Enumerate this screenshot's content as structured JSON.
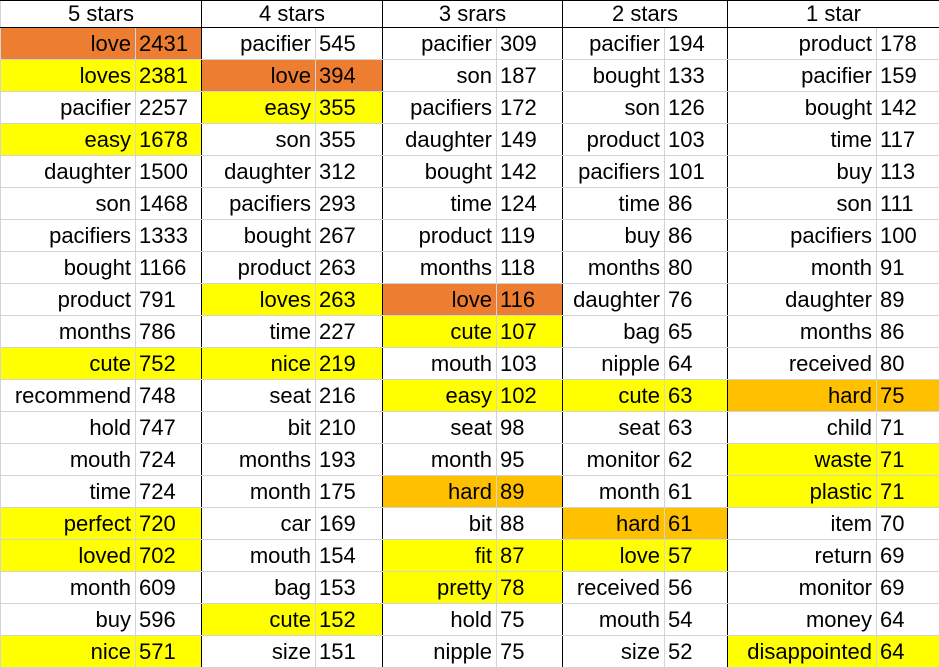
{
  "colors": {
    "yellow": "#ffff00",
    "light_orange": "#ffc000",
    "dark_orange": "#ed7d31"
  },
  "columns": [
    {
      "header": "5 stars",
      "rows": [
        {
          "word": "love",
          "count": "2431",
          "highlight": "dark_orange"
        },
        {
          "word": "loves",
          "count": "2381",
          "highlight": "yellow"
        },
        {
          "word": "pacifier",
          "count": "2257",
          "highlight": ""
        },
        {
          "word": "easy",
          "count": "1678",
          "highlight": "yellow"
        },
        {
          "word": "daughter",
          "count": "1500",
          "highlight": ""
        },
        {
          "word": "son",
          "count": "1468",
          "highlight": ""
        },
        {
          "word": "pacifiers",
          "count": "1333",
          "highlight": ""
        },
        {
          "word": "bought",
          "count": "1166",
          "highlight": ""
        },
        {
          "word": "product",
          "count": "791",
          "highlight": ""
        },
        {
          "word": "months",
          "count": "786",
          "highlight": ""
        },
        {
          "word": "cute",
          "count": "752",
          "highlight": "yellow"
        },
        {
          "word": "recommend",
          "count": "748",
          "highlight": ""
        },
        {
          "word": "hold",
          "count": "747",
          "highlight": ""
        },
        {
          "word": "mouth",
          "count": "724",
          "highlight": ""
        },
        {
          "word": "time",
          "count": "724",
          "highlight": ""
        },
        {
          "word": "perfect",
          "count": "720",
          "highlight": "yellow"
        },
        {
          "word": "loved",
          "count": "702",
          "highlight": "yellow"
        },
        {
          "word": "month",
          "count": "609",
          "highlight": ""
        },
        {
          "word": "buy",
          "count": "596",
          "highlight": ""
        },
        {
          "word": "nice",
          "count": "571",
          "highlight": "yellow"
        }
      ]
    },
    {
      "header": "4 stars",
      "rows": [
        {
          "word": "pacifier",
          "count": "545",
          "highlight": ""
        },
        {
          "word": "love",
          "count": "394",
          "highlight": "dark_orange"
        },
        {
          "word": "easy",
          "count": "355",
          "highlight": "yellow"
        },
        {
          "word": "son",
          "count": "355",
          "highlight": ""
        },
        {
          "word": "daughter",
          "count": "312",
          "highlight": ""
        },
        {
          "word": "pacifiers",
          "count": "293",
          "highlight": ""
        },
        {
          "word": "bought",
          "count": "267",
          "highlight": ""
        },
        {
          "word": "product",
          "count": "263",
          "highlight": ""
        },
        {
          "word": "loves",
          "count": "263",
          "highlight": "yellow"
        },
        {
          "word": "time",
          "count": "227",
          "highlight": ""
        },
        {
          "word": "nice",
          "count": "219",
          "highlight": "yellow"
        },
        {
          "word": "seat",
          "count": "216",
          "highlight": ""
        },
        {
          "word": "bit",
          "count": "210",
          "highlight": ""
        },
        {
          "word": "months",
          "count": "193",
          "highlight": ""
        },
        {
          "word": "month",
          "count": "175",
          "highlight": ""
        },
        {
          "word": "car",
          "count": "169",
          "highlight": ""
        },
        {
          "word": "mouth",
          "count": "154",
          "highlight": ""
        },
        {
          "word": "bag",
          "count": "153",
          "highlight": ""
        },
        {
          "word": "cute",
          "count": "152",
          "highlight": "yellow"
        },
        {
          "word": "size",
          "count": "151",
          "highlight": ""
        }
      ]
    },
    {
      "header": "3 srars",
      "rows": [
        {
          "word": "pacifier",
          "count": "309",
          "highlight": ""
        },
        {
          "word": "son",
          "count": "187",
          "highlight": ""
        },
        {
          "word": "pacifiers",
          "count": "172",
          "highlight": ""
        },
        {
          "word": "daughter",
          "count": "149",
          "highlight": ""
        },
        {
          "word": "bought",
          "count": "142",
          "highlight": ""
        },
        {
          "word": "time",
          "count": "124",
          "highlight": ""
        },
        {
          "word": "product",
          "count": "119",
          "highlight": ""
        },
        {
          "word": "months",
          "count": "118",
          "highlight": ""
        },
        {
          "word": "love",
          "count": "116",
          "highlight": "dark_orange"
        },
        {
          "word": "cute",
          "count": "107",
          "highlight": "yellow"
        },
        {
          "word": "mouth",
          "count": "103",
          "highlight": ""
        },
        {
          "word": "easy",
          "count": "102",
          "highlight": "yellow"
        },
        {
          "word": "seat",
          "count": "98",
          "highlight": ""
        },
        {
          "word": "month",
          "count": "95",
          "highlight": ""
        },
        {
          "word": "hard",
          "count": "89",
          "highlight": "light_orange"
        },
        {
          "word": "bit",
          "count": "88",
          "highlight": ""
        },
        {
          "word": "fit",
          "count": "87",
          "highlight": "yellow"
        },
        {
          "word": "pretty",
          "count": "78",
          "highlight": "yellow"
        },
        {
          "word": "hold",
          "count": "75",
          "highlight": ""
        },
        {
          "word": "nipple",
          "count": "75",
          "highlight": ""
        }
      ]
    },
    {
      "header": "2 stars",
      "rows": [
        {
          "word": "pacifier",
          "count": "194",
          "highlight": ""
        },
        {
          "word": "bought",
          "count": "133",
          "highlight": ""
        },
        {
          "word": "son",
          "count": "126",
          "highlight": ""
        },
        {
          "word": "product",
          "count": "103",
          "highlight": ""
        },
        {
          "word": "pacifiers",
          "count": "101",
          "highlight": ""
        },
        {
          "word": "time",
          "count": "86",
          "highlight": ""
        },
        {
          "word": "buy",
          "count": "86",
          "highlight": ""
        },
        {
          "word": "months",
          "count": "80",
          "highlight": ""
        },
        {
          "word": "daughter",
          "count": "76",
          "highlight": ""
        },
        {
          "word": "bag",
          "count": "65",
          "highlight": ""
        },
        {
          "word": "nipple",
          "count": "64",
          "highlight": ""
        },
        {
          "word": "cute",
          "count": "63",
          "highlight": "yellow"
        },
        {
          "word": "seat",
          "count": "63",
          "highlight": ""
        },
        {
          "word": "monitor",
          "count": "62",
          "highlight": ""
        },
        {
          "word": "month",
          "count": "61",
          "highlight": ""
        },
        {
          "word": "hard",
          "count": "61",
          "highlight": "light_orange"
        },
        {
          "word": "love",
          "count": "57",
          "highlight": "yellow"
        },
        {
          "word": "received",
          "count": "56",
          "highlight": ""
        },
        {
          "word": "mouth",
          "count": "54",
          "highlight": ""
        },
        {
          "word": "size",
          "count": "52",
          "highlight": ""
        }
      ]
    },
    {
      "header": "1 star",
      "rows": [
        {
          "word": "product",
          "count": "178",
          "highlight": ""
        },
        {
          "word": "pacifier",
          "count": "159",
          "highlight": ""
        },
        {
          "word": "bought",
          "count": "142",
          "highlight": ""
        },
        {
          "word": "time",
          "count": "117",
          "highlight": ""
        },
        {
          "word": "buy",
          "count": "113",
          "highlight": ""
        },
        {
          "word": "son",
          "count": "111",
          "highlight": ""
        },
        {
          "word": "pacifiers",
          "count": "100",
          "highlight": ""
        },
        {
          "word": "month",
          "count": "91",
          "highlight": ""
        },
        {
          "word": "daughter",
          "count": "89",
          "highlight": ""
        },
        {
          "word": "months",
          "count": "86",
          "highlight": ""
        },
        {
          "word": "received",
          "count": "80",
          "highlight": ""
        },
        {
          "word": "hard",
          "count": "75",
          "highlight": "light_orange"
        },
        {
          "word": "child",
          "count": "71",
          "highlight": ""
        },
        {
          "word": "waste",
          "count": "71",
          "highlight": "yellow"
        },
        {
          "word": "plastic",
          "count": "71",
          "highlight": "yellow"
        },
        {
          "word": "item",
          "count": "70",
          "highlight": ""
        },
        {
          "word": "return",
          "count": "69",
          "highlight": ""
        },
        {
          "word": "monitor",
          "count": "69",
          "highlight": ""
        },
        {
          "word": "money",
          "count": "64",
          "highlight": ""
        },
        {
          "word": "disappointed",
          "count": "64",
          "highlight": "yellow"
        }
      ]
    }
  ]
}
